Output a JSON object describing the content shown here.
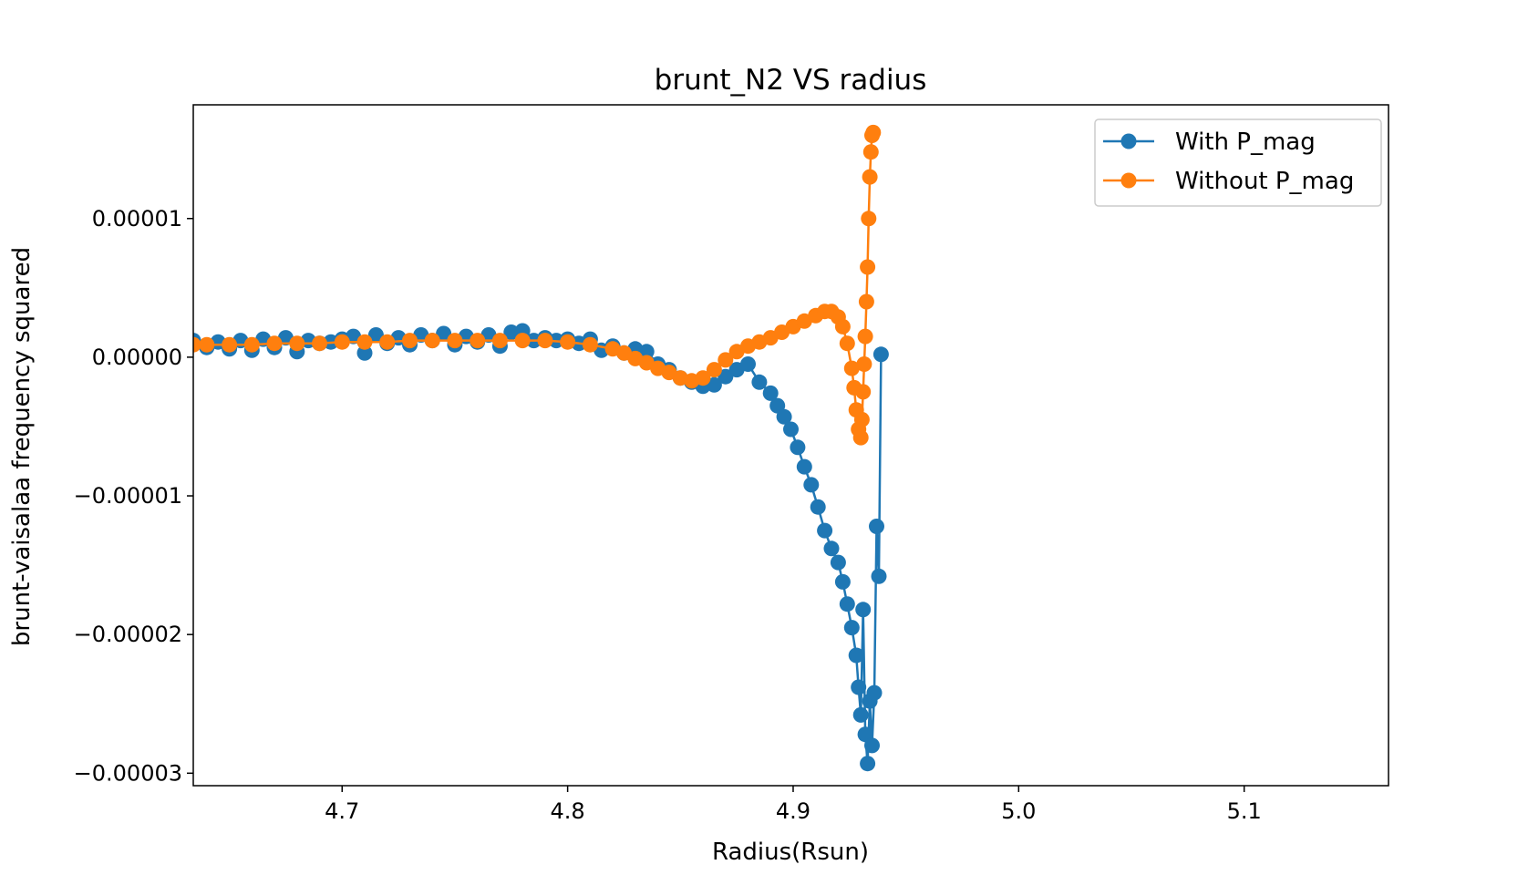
{
  "chart_data": {
    "type": "line",
    "title": "brunt_N2 VS radius",
    "xlabel": "Radius(Rsun)",
    "ylabel": "brunt-vaisalaa frequency squared",
    "xlim": [
      4.634,
      5.164
    ],
    "ylim": [
      -3.09e-05,
      1.82e-05
    ],
    "x_ticks": [
      4.7,
      4.8,
      4.9,
      5.0,
      5.1
    ],
    "x_tick_labels": [
      "4.7",
      "4.8",
      "4.9",
      "5.0",
      "5.1"
    ],
    "y_ticks": [
      1e-05,
      0.0,
      -1e-05,
      -2e-05,
      -3e-05
    ],
    "y_tick_labels": [
      "0.00001",
      "0.00000",
      "−0.00001",
      "−0.00002",
      "−0.00003"
    ],
    "legend_position": "top-right",
    "series": [
      {
        "name": "With P_mag",
        "color": "#1f77b4",
        "x": [
          4.634,
          4.64,
          4.645,
          4.65,
          4.655,
          4.66,
          4.665,
          4.67,
          4.675,
          4.68,
          4.685,
          4.69,
          4.695,
          4.7,
          4.705,
          4.71,
          4.715,
          4.72,
          4.725,
          4.73,
          4.735,
          4.74,
          4.745,
          4.75,
          4.755,
          4.76,
          4.765,
          4.77,
          4.775,
          4.78,
          4.785,
          4.79,
          4.795,
          4.8,
          4.805,
          4.81,
          4.815,
          4.82,
          4.825,
          4.83,
          4.835,
          4.84,
          4.845,
          4.85,
          4.855,
          4.86,
          4.865,
          4.87,
          4.875,
          4.88,
          4.885,
          4.89,
          4.893,
          4.896,
          4.899,
          4.902,
          4.905,
          4.908,
          4.911,
          4.914,
          4.917,
          4.92,
          4.922,
          4.924,
          4.926,
          4.928,
          4.929,
          4.93,
          4.931,
          4.932,
          4.933,
          4.934,
          4.935,
          4.936,
          4.937,
          4.938,
          4.939
        ],
        "values": [
          1.2e-06,
          7e-07,
          1.1e-06,
          6e-07,
          1.2e-06,
          5e-07,
          1.3e-06,
          7e-07,
          1.4e-06,
          4e-07,
          1.2e-06,
          1e-06,
          1.1e-06,
          1.3e-06,
          1.5e-06,
          3e-07,
          1.6e-06,
          1e-06,
          1.4e-06,
          9e-07,
          1.6e-06,
          1.2e-06,
          1.7e-06,
          9e-07,
          1.5e-06,
          1.1e-06,
          1.6e-06,
          8e-07,
          1.8e-06,
          1.9e-06,
          1.2e-06,
          1.4e-06,
          1.2e-06,
          1.3e-06,
          1e-06,
          1.3e-06,
          5e-07,
          8e-07,
          3e-07,
          6e-07,
          4e-07,
          -5e-07,
          -9e-07,
          -1.5e-06,
          -1.8e-06,
          -2.1e-06,
          -2e-06,
          -1.4e-06,
          -9e-07,
          -5e-07,
          -1.8e-06,
          -2.6e-06,
          -3.5e-06,
          -4.3e-06,
          -5.2e-06,
          -6.5e-06,
          -7.9e-06,
          -9.2e-06,
          -1.08e-05,
          -1.25e-05,
          -1.38e-05,
          -1.48e-05,
          -1.62e-05,
          -1.78e-05,
          -1.95e-05,
          -2.15e-05,
          -2.38e-05,
          -2.58e-05,
          -1.82e-05,
          -2.72e-05,
          -2.93e-05,
          -2.48e-05,
          -2.8e-05,
          -2.42e-05,
          -1.22e-05,
          -1.58e-05,
          2e-07
        ]
      },
      {
        "name": "Without P_mag",
        "color": "#ff7f0e",
        "x": [
          4.634,
          4.64,
          4.65,
          4.66,
          4.67,
          4.68,
          4.69,
          4.7,
          4.71,
          4.72,
          4.73,
          4.74,
          4.75,
          4.76,
          4.77,
          4.78,
          4.79,
          4.8,
          4.81,
          4.82,
          4.825,
          4.83,
          4.835,
          4.84,
          4.845,
          4.85,
          4.855,
          4.86,
          4.865,
          4.87,
          4.875,
          4.88,
          4.885,
          4.89,
          4.895,
          4.9,
          4.905,
          4.91,
          4.914,
          4.917,
          4.92,
          4.922,
          4.924,
          4.926,
          4.927,
          4.928,
          4.929,
          4.93,
          4.9305,
          4.931,
          4.9315,
          4.932,
          4.9325,
          4.933,
          4.9335,
          4.934,
          4.9345,
          4.935,
          4.9355
        ],
        "values": [
          9e-07,
          9e-07,
          9e-07,
          9e-07,
          1e-06,
          1e-06,
          1e-06,
          1.1e-06,
          1.1e-06,
          1.1e-06,
          1.2e-06,
          1.2e-06,
          1.2e-06,
          1.2e-06,
          1.2e-06,
          1.2e-06,
          1.2e-06,
          1.1e-06,
          9e-07,
          6e-07,
          3e-07,
          -1e-07,
          -4e-07,
          -8e-07,
          -1.1e-06,
          -1.5e-06,
          -1.7e-06,
          -1.5e-06,
          -9e-07,
          -2e-07,
          4e-07,
          8e-07,
          1.1e-06,
          1.4e-06,
          1.8e-06,
          2.2e-06,
          2.6e-06,
          3e-06,
          3.3e-06,
          3.3e-06,
          2.9e-06,
          2.2e-06,
          1e-06,
          -8e-07,
          -2.2e-06,
          -3.8e-06,
          -5.2e-06,
          -5.8e-06,
          -4.5e-06,
          -2.5e-06,
          -5e-07,
          1.5e-06,
          4e-06,
          6.5e-06,
          1e-05,
          1.3e-05,
          1.48e-05,
          1.6e-05,
          1.62e-05
        ]
      }
    ]
  }
}
